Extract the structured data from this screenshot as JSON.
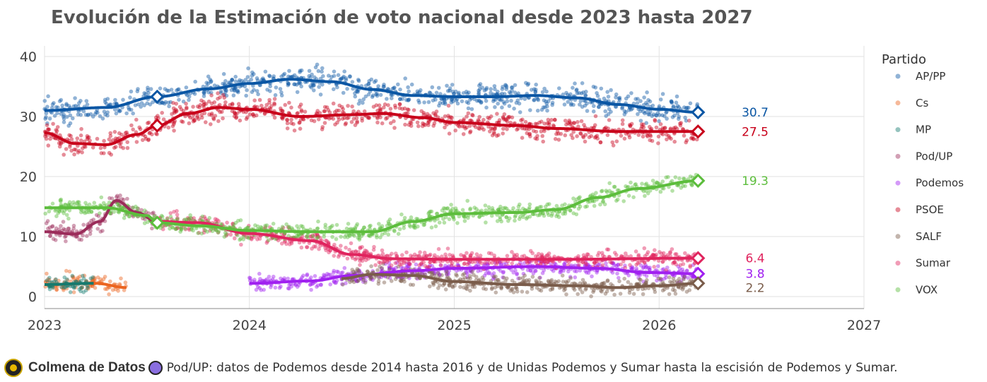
{
  "chart_data": {
    "type": "scatter+line",
    "title": "Evolución de la Estimación de voto nacional desde 2023 hasta 2027",
    "xlabel": "",
    "ylabel": "",
    "xlim": [
      2023,
      2027
    ],
    "ylim": [
      -2,
      42
    ],
    "x_ticks": [
      "2023",
      "2024",
      "2025",
      "2026",
      "2027"
    ],
    "y_ticks": [
      "0",
      "10",
      "20",
      "30",
      "40"
    ],
    "grid": true,
    "legend": {
      "title": "Partido",
      "placement": "right"
    },
    "series": [
      {
        "name": "AP/PP",
        "color": "#0a56a4",
        "trend": [
          [
            2023,
            31
          ],
          [
            2023.3,
            31.5
          ],
          [
            2023.55,
            33.3
          ],
          [
            2023.8,
            34.6
          ],
          [
            2024,
            35.5
          ],
          [
            2024.2,
            36.2
          ],
          [
            2024.4,
            35.8
          ],
          [
            2024.6,
            34.5
          ],
          [
            2024.8,
            33.5
          ],
          [
            2025,
            33.3
          ],
          [
            2025.2,
            33.3
          ],
          [
            2025.4,
            33.5
          ],
          [
            2025.6,
            33.1
          ],
          [
            2025.8,
            32
          ],
          [
            2026,
            31.2
          ],
          [
            2026.19,
            30.7
          ]
        ],
        "markers": [
          2023.55,
          2026.19
        ],
        "end_label": "30.7"
      },
      {
        "name": "Cs",
        "color": "#eb6420",
        "trend": [
          [
            2023,
            2
          ],
          [
            2023.25,
            2.2
          ],
          [
            2023.4,
            1.5
          ]
        ]
      },
      {
        "name": "MP",
        "color": "#157a6e",
        "trend": [
          [
            2023,
            2
          ],
          [
            2023.24,
            2.2
          ]
        ]
      },
      {
        "name": "Pod/UP",
        "color": "#9b2c5a",
        "trend": [
          [
            2023,
            10.8
          ],
          [
            2023.15,
            10.4
          ],
          [
            2023.27,
            12.5
          ],
          [
            2023.35,
            16
          ],
          [
            2023.45,
            14
          ],
          [
            2023.55,
            12.5
          ]
        ]
      },
      {
        "name": "Podemos",
        "color": "#a020f0",
        "trend": [
          [
            2024,
            2.2
          ],
          [
            2024.3,
            2.6
          ],
          [
            2024.5,
            3.5
          ],
          [
            2024.8,
            4.3
          ],
          [
            2025,
            4.7
          ],
          [
            2025.4,
            5
          ],
          [
            2025.7,
            4.7
          ],
          [
            2025.95,
            4
          ],
          [
            2026.19,
            3.8
          ]
        ],
        "markers": [
          2026.19
        ],
        "end_label": "3.8"
      },
      {
        "name": "PSOE",
        "color": "#c8001a",
        "trend": [
          [
            2023,
            27.3
          ],
          [
            2023.15,
            25.5
          ],
          [
            2023.3,
            25.3
          ],
          [
            2023.45,
            27
          ],
          [
            2023.55,
            28.5
          ],
          [
            2023.7,
            30.5
          ],
          [
            2023.85,
            31.5
          ],
          [
            2024,
            31.2
          ],
          [
            2024.25,
            30
          ],
          [
            2024.5,
            30.3
          ],
          [
            2024.65,
            30.5
          ],
          [
            2024.85,
            29.8
          ],
          [
            2025,
            29
          ],
          [
            2025.3,
            28.5
          ],
          [
            2025.5,
            28
          ],
          [
            2025.8,
            27.5
          ],
          [
            2026.19,
            27.5
          ]
        ],
        "markers": [
          2023.55,
          2026.19
        ],
        "end_label": "27.5"
      },
      {
        "name": "SALF",
        "color": "#7a5c4a",
        "trend": [
          [
            2024.45,
            3
          ],
          [
            2024.6,
            3.7
          ],
          [
            2024.8,
            3.5
          ],
          [
            2025,
            2.5
          ],
          [
            2025.3,
            2
          ],
          [
            2025.6,
            1.8
          ],
          [
            2025.8,
            1.5
          ],
          [
            2026,
            1.8
          ],
          [
            2026.19,
            2.2
          ]
        ],
        "markers": [
          2026.19
        ],
        "end_label": "2.2"
      },
      {
        "name": "Sumar",
        "color": "#e0245e",
        "trend": [
          [
            2023.55,
            12.5
          ],
          [
            2023.75,
            12.3
          ],
          [
            2024,
            10.5
          ],
          [
            2024.3,
            9.3
          ],
          [
            2024.5,
            7
          ],
          [
            2024.7,
            6.3
          ],
          [
            2025,
            6.2
          ],
          [
            2025.5,
            6.2
          ],
          [
            2026.19,
            6.4
          ]
        ],
        "markers": [
          2026.19
        ],
        "end_label": "6.4"
      },
      {
        "name": "VOX",
        "color": "#5cbd3c",
        "trend": [
          [
            2023,
            14.8
          ],
          [
            2023.3,
            14.8
          ],
          [
            2023.5,
            13.5
          ],
          [
            2023.55,
            12.3
          ],
          [
            2023.75,
            11.8
          ],
          [
            2024,
            11
          ],
          [
            2024.3,
            10.8
          ],
          [
            2024.6,
            10.8
          ],
          [
            2024.8,
            12.5
          ],
          [
            2025,
            13.8
          ],
          [
            2025.3,
            14
          ],
          [
            2025.5,
            14.5
          ],
          [
            2025.7,
            16.5
          ],
          [
            2025.9,
            18
          ],
          [
            2026.19,
            19.3
          ]
        ],
        "markers": [
          2023.55,
          2026.19
        ],
        "end_label": "19.3"
      }
    ]
  },
  "footer": {
    "brand": "Colmena de Datos",
    "note": "Pod/UP: datos de Podemos desde 2014 hasta 2016 y de Unidas Podemos y Sumar hasta la escisión de Podemos y Sumar."
  }
}
